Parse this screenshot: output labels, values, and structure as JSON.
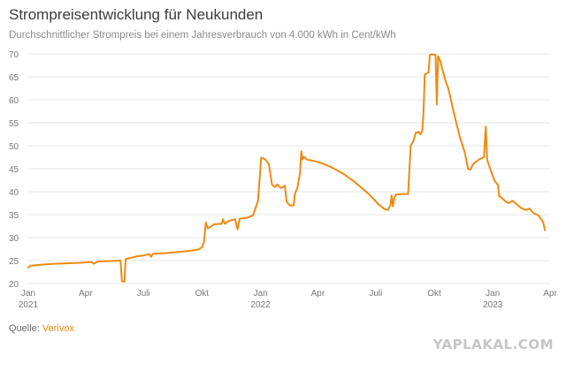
{
  "chart_data": {
    "type": "line",
    "title": "Strompreisentwicklung für Neukunden",
    "subtitle": "Durchschnittlicher Strompreis bei einem Jahresverbrauch von 4.000 kWh in Cent/kWh",
    "xlabel": "",
    "ylabel": "",
    "ylim": [
      20,
      70
    ],
    "yticks": [
      "70",
      "65",
      "60",
      "55",
      "50",
      "45",
      "40",
      "35",
      "30",
      "25",
      "20"
    ],
    "xticks": [
      {
        "date": "2021-01-01",
        "label": "Jan",
        "sub": "2021"
      },
      {
        "date": "2021-04-01",
        "label": "Apr",
        "sub": ""
      },
      {
        "date": "2021-07-01",
        "label": "Juli",
        "sub": ""
      },
      {
        "date": "2021-10-01",
        "label": "Okt",
        "sub": ""
      },
      {
        "date": "2022-01-01",
        "label": "Jan",
        "sub": "2022"
      },
      {
        "date": "2022-04-01",
        "label": "Apr",
        "sub": ""
      },
      {
        "date": "2022-07-01",
        "label": "Juli",
        "sub": ""
      },
      {
        "date": "2022-10-01",
        "label": "Okt",
        "sub": ""
      },
      {
        "date": "2023-01-01",
        "label": "Jan",
        "sub": "2023"
      },
      {
        "date": "2023-04-01",
        "label": "Apr",
        "sub": ""
      }
    ],
    "grid": true,
    "line_color": "#ef8a12",
    "series": [
      {
        "name": "",
        "points": [
          [
            "2021-01-01",
            23.5
          ],
          [
            "2021-01-05",
            23.9
          ],
          [
            "2021-01-20",
            24.1
          ],
          [
            "2021-02-10",
            24.3
          ],
          [
            "2021-03-01",
            24.4
          ],
          [
            "2021-03-20",
            24.5
          ],
          [
            "2021-04-10",
            24.7
          ],
          [
            "2021-04-14",
            24.3
          ],
          [
            "2021-04-20",
            24.8
          ],
          [
            "2021-05-10",
            24.9
          ],
          [
            "2021-05-26",
            25.0
          ],
          [
            "2021-05-28",
            20.5
          ],
          [
            "2021-06-01",
            20.4
          ],
          [
            "2021-06-03",
            25.3
          ],
          [
            "2021-06-20",
            25.9
          ],
          [
            "2021-07-01",
            26.1
          ],
          [
            "2021-07-10",
            26.4
          ],
          [
            "2021-07-13",
            25.8
          ],
          [
            "2021-07-16",
            26.5
          ],
          [
            "2021-08-01",
            26.6
          ],
          [
            "2021-08-20",
            26.8
          ],
          [
            "2021-09-10",
            27.1
          ],
          [
            "2021-09-25",
            27.4
          ],
          [
            "2021-10-01",
            27.9
          ],
          [
            "2021-10-04",
            29.0
          ],
          [
            "2021-10-07",
            33.3
          ],
          [
            "2021-10-10",
            32.0
          ],
          [
            "2021-10-16",
            32.5
          ],
          [
            "2021-10-20",
            32.9
          ],
          [
            "2021-11-01",
            33.0
          ],
          [
            "2021-11-03",
            34.0
          ],
          [
            "2021-11-06",
            33.0
          ],
          [
            "2021-11-12",
            33.6
          ],
          [
            "2021-11-22",
            34.0
          ],
          [
            "2021-11-26",
            31.8
          ],
          [
            "2021-11-29",
            34.1
          ],
          [
            "2021-12-10",
            34.3
          ],
          [
            "2021-12-20",
            34.8
          ],
          [
            "2021-12-28",
            38.0
          ],
          [
            "2022-01-01",
            45.5
          ],
          [
            "2022-01-02",
            47.4
          ],
          [
            "2022-01-08",
            47.1
          ],
          [
            "2022-01-14",
            46.0
          ],
          [
            "2022-01-19",
            41.5
          ],
          [
            "2022-01-24",
            41.0
          ],
          [
            "2022-01-27",
            41.6
          ],
          [
            "2022-02-02",
            40.8
          ],
          [
            "2022-02-08",
            41.3
          ],
          [
            "2022-02-11",
            37.8
          ],
          [
            "2022-02-16",
            37.0
          ],
          [
            "2022-02-22",
            37.0
          ],
          [
            "2022-02-24",
            39.5
          ],
          [
            "2022-02-28",
            41.0
          ],
          [
            "2022-03-04",
            44.0
          ],
          [
            "2022-03-06",
            48.8
          ],
          [
            "2022-03-08",
            47.0
          ],
          [
            "2022-03-10",
            47.6
          ],
          [
            "2022-03-15",
            47.0
          ],
          [
            "2022-04-01",
            46.5
          ],
          [
            "2022-04-20",
            45.5
          ],
          [
            "2022-05-10",
            44.0
          ],
          [
            "2022-05-30",
            42.0
          ],
          [
            "2022-06-20",
            39.5
          ],
          [
            "2022-07-05",
            37.3
          ],
          [
            "2022-07-15",
            36.2
          ],
          [
            "2022-07-20",
            36.0
          ],
          [
            "2022-07-24",
            37.0
          ],
          [
            "2022-07-26",
            39.2
          ],
          [
            "2022-07-28",
            36.8
          ],
          [
            "2022-07-30",
            38.6
          ],
          [
            "2022-08-02",
            39.4
          ],
          [
            "2022-08-12",
            39.5
          ],
          [
            "2022-08-21",
            39.5
          ],
          [
            "2022-08-23",
            45.0
          ],
          [
            "2022-08-25",
            50.0
          ],
          [
            "2022-08-29",
            51.0
          ],
          [
            "2022-09-02",
            52.8
          ],
          [
            "2022-09-07",
            53.0
          ],
          [
            "2022-09-09",
            52.5
          ],
          [
            "2022-09-12",
            53.2
          ],
          [
            "2022-09-14",
            57.0
          ],
          [
            "2022-09-16",
            65.5
          ],
          [
            "2022-09-22",
            66.0
          ],
          [
            "2022-09-24",
            69.8
          ],
          [
            "2022-09-28",
            69.9
          ],
          [
            "2022-10-03",
            69.8
          ],
          [
            "2022-10-05",
            59.0
          ],
          [
            "2022-10-07",
            69.5
          ],
          [
            "2022-10-11",
            68.2
          ],
          [
            "2022-10-14",
            66.5
          ],
          [
            "2022-10-19",
            64.0
          ],
          [
            "2022-10-23",
            62.5
          ],
          [
            "2022-11-01",
            57.0
          ],
          [
            "2022-11-10",
            52.0
          ],
          [
            "2022-11-18",
            48.5
          ],
          [
            "2022-11-23",
            45.0
          ],
          [
            "2022-11-27",
            44.8
          ],
          [
            "2022-12-01",
            46.0
          ],
          [
            "2022-12-10",
            47.0
          ],
          [
            "2022-12-18",
            47.5
          ],
          [
            "2022-12-21",
            54.2
          ],
          [
            "2022-12-23",
            47.0
          ],
          [
            "2022-12-29",
            44.5
          ],
          [
            "2023-01-04",
            42.3
          ],
          [
            "2023-01-09",
            41.5
          ],
          [
            "2023-01-11",
            39.0
          ],
          [
            "2023-01-14",
            38.8
          ],
          [
            "2023-01-20",
            38.0
          ],
          [
            "2023-01-26",
            37.5
          ],
          [
            "2023-02-01",
            38.0
          ],
          [
            "2023-02-08",
            37.2
          ],
          [
            "2023-02-15",
            36.4
          ],
          [
            "2023-02-22",
            36.0
          ],
          [
            "2023-02-28",
            36.3
          ],
          [
            "2023-03-06",
            35.3
          ],
          [
            "2023-03-14",
            34.8
          ],
          [
            "2023-03-21",
            33.4
          ],
          [
            "2023-03-24",
            31.6
          ]
        ]
      }
    ]
  },
  "source": {
    "label": "Quelle:",
    "link": "Verivox"
  },
  "watermark": "YAPLAKAL.COM"
}
